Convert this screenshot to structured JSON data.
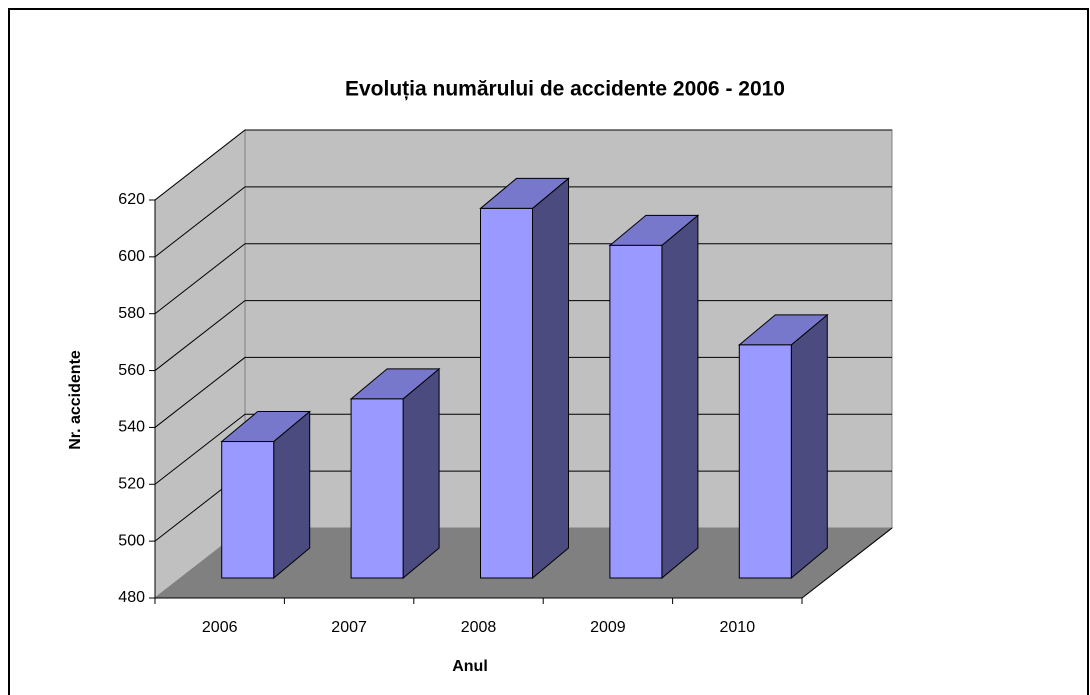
{
  "chart_data": {
    "type": "bar3d",
    "title": "Evoluția numărului de accidente 2006 - 2010",
    "x_label": "Anul",
    "y_label": "Nr. accidente",
    "categories": [
      "2006",
      "2007",
      "2008",
      "2009",
      "2010"
    ],
    "values": [
      528,
      543,
      610,
      597,
      562
    ],
    "color": "#9999ff",
    "ylim": [
      480,
      620
    ],
    "yticks": [
      480,
      500,
      520,
      540,
      560,
      580,
      600,
      620
    ],
    "grid": true
  }
}
